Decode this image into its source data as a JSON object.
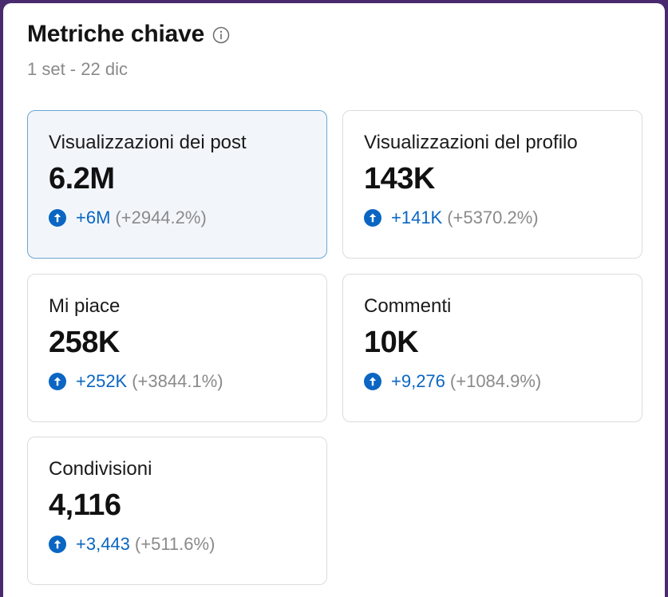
{
  "header": {
    "title": "Metriche chiave",
    "date_range": "1 set - 22 dic",
    "info_icon": "info-circle-icon"
  },
  "colors": {
    "accent_blue": "#0a66c2",
    "selected_border": "#6aa6cf",
    "selected_bg": "#f2f6fb"
  },
  "metrics": [
    {
      "label": "Visualizzazioni dei post",
      "value": "6.2M",
      "delta": "+6M",
      "delta_pct": "(+2944.2%)",
      "selected": true
    },
    {
      "label": "Visualizzazioni del profilo",
      "value": "143K",
      "delta": "+141K",
      "delta_pct": "(+5370.2%)",
      "selected": false
    },
    {
      "label": "Mi piace",
      "value": "258K",
      "delta": "+252K",
      "delta_pct": "(+3844.1%)",
      "selected": false
    },
    {
      "label": "Commenti",
      "value": "10K",
      "delta": "+9,276",
      "delta_pct": "(+1084.9%)",
      "selected": false
    },
    {
      "label": "Condivisioni",
      "value": "4,116",
      "delta": "+3,443",
      "delta_pct": "(+511.6%)",
      "selected": false
    }
  ]
}
